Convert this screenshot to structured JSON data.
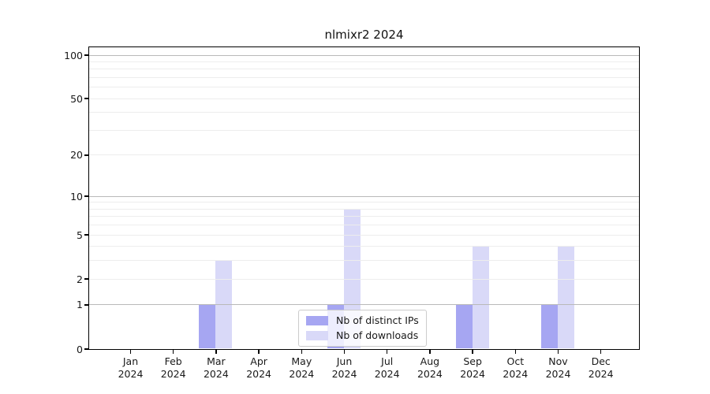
{
  "chart_data": {
    "type": "bar",
    "title": "nlmixr2 2024",
    "categories": [
      "Jan",
      "Feb",
      "Mar",
      "Apr",
      "May",
      "Jun",
      "Jul",
      "Aug",
      "Sep",
      "Oct",
      "Nov",
      "Dec"
    ],
    "year_label": "2024",
    "series": [
      {
        "name": "Nb of distinct IPs",
        "color": "#a6a6f2",
        "values": [
          0,
          0,
          1,
          0,
          0,
          1,
          0,
          0,
          1,
          0,
          1,
          0
        ]
      },
      {
        "name": "Nb of downloads",
        "color": "#d9d9f8",
        "values": [
          0,
          0,
          3,
          0,
          0,
          8,
          0,
          0,
          4,
          0,
          4,
          0
        ]
      }
    ],
    "y_ticks": [
      0,
      1,
      2,
      5,
      10,
      20,
      50,
      100
    ],
    "y_scale": "log1p",
    "ylim": [
      0,
      113
    ],
    "xlabel": "",
    "ylabel": "",
    "grid": "on",
    "legend_position": "inside-bottom-center"
  },
  "colors": {
    "major_grid": "#b9b9b9",
    "minor_grid": "#ededed",
    "spine": "#000000",
    "text": "#191919",
    "legend_border": "#cccccc",
    "background": "#ffffff"
  }
}
